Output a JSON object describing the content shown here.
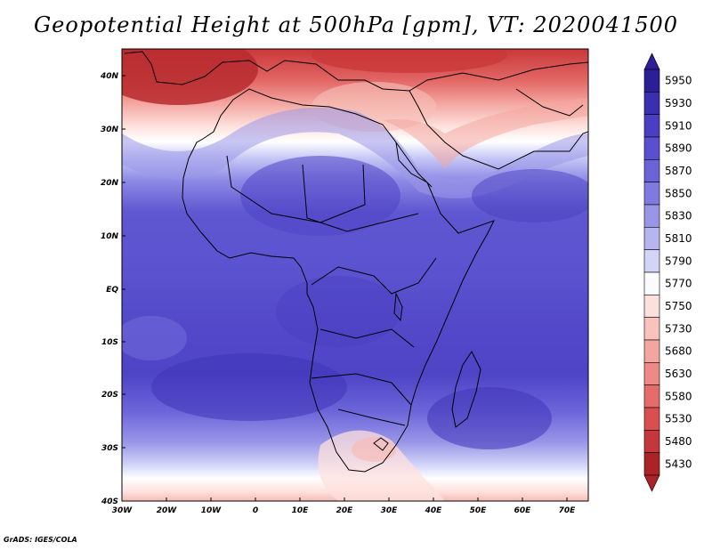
{
  "map": {
    "title": "Geopotential Height at 500hPa [gpm], VT: 2020041500",
    "footer": "GrADS: IGES/COLA",
    "lat_labels": [
      "40N",
      "30N",
      "20N",
      "10N",
      "EQ",
      "10S",
      "20S",
      "30S",
      "40S"
    ],
    "lon_labels": [
      "30W",
      "20W",
      "10W",
      "0",
      "10E",
      "20E",
      "30E",
      "40E",
      "50E",
      "60E",
      "70E"
    ]
  },
  "legend": {
    "levels": [
      "5950",
      "5930",
      "5910",
      "5890",
      "5870",
      "5850",
      "5830",
      "5810",
      "5790",
      "5770",
      "5750",
      "5730",
      "5680",
      "5630",
      "5580",
      "5530",
      "5480",
      "5430"
    ],
    "colors": [
      "#2b1e96",
      "#3a2fae",
      "#4a3fc2",
      "#5a50cf",
      "#6b64d9",
      "#7f7ae0",
      "#9996e8",
      "#b6b5f0",
      "#d3d4f8",
      "#fbfbfd",
      "#fde0dc",
      "#f9c3bd",
      "#f4a59f",
      "#ee8a85",
      "#e66c6a",
      "#d94f50",
      "#c4373a",
      "#ab2326"
    ]
  }
}
